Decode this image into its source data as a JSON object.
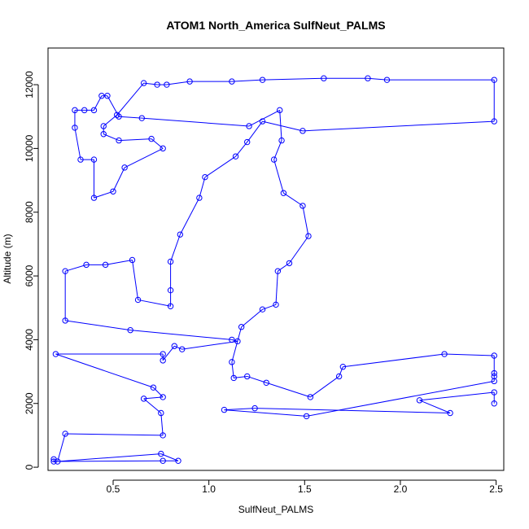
{
  "chart_data": {
    "type": "scatter",
    "title": "ATOM1 North_America SulfNeut_PALMS",
    "xlabel": "SulfNeut_PALMS",
    "ylabel": "Altitude (m)",
    "xlim": [
      0.16,
      2.54
    ],
    "ylim": [
      -100,
      13150
    ],
    "xticks": [
      "0.5",
      "1.0",
      "1.5",
      "2.0",
      "2.5"
    ],
    "xtick_values": [
      0.5,
      1.0,
      1.5,
      2.0,
      2.5
    ],
    "yticks": [
      "0",
      "2000",
      "4000",
      "6000",
      "8000",
      "10000",
      "12000"
    ],
    "ytick_values": [
      0,
      2000,
      4000,
      6000,
      8000,
      10000,
      12000
    ],
    "grid": false,
    "colors": {
      "series": "#0000ff",
      "axis": "#000000"
    },
    "series": [
      {
        "connected": true,
        "marker": "open-circle",
        "points": [
          [
            0.19,
            250
          ],
          [
            0.19,
            180
          ],
          [
            0.76,
            200
          ],
          [
            0.84,
            200
          ],
          [
            0.75,
            420
          ],
          [
            0.21,
            180
          ],
          [
            0.25,
            1050
          ],
          [
            0.76,
            1000
          ],
          [
            0.75,
            1700
          ],
          [
            0.66,
            2150
          ],
          [
            0.76,
            2200
          ],
          [
            0.71,
            2500
          ],
          [
            0.2,
            3550
          ],
          [
            0.76,
            3550
          ],
          [
            0.76,
            3350
          ],
          [
            0.82,
            3800
          ],
          [
            0.86,
            3700
          ],
          [
            1.15,
            3950
          ],
          [
            1.12,
            4000
          ],
          [
            0.59,
            4300
          ],
          [
            0.25,
            4600
          ],
          [
            0.25,
            6150
          ],
          [
            0.36,
            6350
          ],
          [
            0.46,
            6350
          ],
          [
            0.6,
            6500
          ],
          [
            0.63,
            5250
          ],
          [
            0.8,
            5050
          ],
          [
            0.8,
            5550
          ],
          [
            0.8,
            6450
          ],
          [
            0.85,
            7300
          ],
          [
            0.95,
            8450
          ],
          [
            0.98,
            9100
          ],
          [
            1.14,
            9750
          ],
          [
            1.2,
            10200
          ],
          [
            1.28,
            10850
          ],
          [
            1.49,
            10550
          ],
          [
            2.49,
            10850
          ],
          [
            2.49,
            12150
          ],
          [
            1.93,
            12150
          ],
          [
            1.83,
            12200
          ],
          [
            1.6,
            12200
          ],
          [
            1.28,
            12150
          ],
          [
            1.12,
            12100
          ],
          [
            0.9,
            12100
          ],
          [
            0.78,
            12000
          ],
          [
            0.73,
            12000
          ],
          [
            0.66,
            12050
          ],
          [
            0.52,
            11050
          ],
          [
            0.45,
            10700
          ],
          [
            0.45,
            10450
          ],
          [
            0.53,
            10250
          ],
          [
            0.7,
            10300
          ],
          [
            0.76,
            10000
          ],
          [
            0.56,
            9400
          ],
          [
            0.5,
            8650
          ],
          [
            0.4,
            8450
          ],
          [
            0.4,
            9650
          ],
          [
            0.33,
            9650
          ],
          [
            0.3,
            10650
          ],
          [
            0.3,
            11200
          ],
          [
            0.35,
            11200
          ],
          [
            0.4,
            11200
          ],
          [
            0.44,
            11650
          ],
          [
            0.47,
            11650
          ],
          [
            0.53,
            11000
          ],
          [
            0.65,
            10950
          ],
          [
            1.21,
            10700
          ],
          [
            1.37,
            11200
          ],
          [
            1.38,
            10250
          ],
          [
            1.34,
            9650
          ],
          [
            1.39,
            8600
          ],
          [
            1.49,
            8200
          ],
          [
            1.52,
            7250
          ],
          [
            1.42,
            6400
          ],
          [
            1.36,
            6150
          ],
          [
            1.35,
            5100
          ],
          [
            1.28,
            4950
          ],
          [
            1.17,
            4400
          ],
          [
            1.12,
            3300
          ],
          [
            1.13,
            2800
          ],
          [
            1.2,
            2850
          ],
          [
            1.3,
            2650
          ],
          [
            1.53,
            2200
          ],
          [
            1.68,
            2850
          ],
          [
            1.7,
            3150
          ],
          [
            2.23,
            3550
          ],
          [
            2.49,
            3500
          ],
          [
            2.49,
            2950
          ],
          [
            2.49,
            2850
          ],
          [
            2.49,
            2700
          ],
          [
            1.51,
            1600
          ],
          [
            1.08,
            1800
          ],
          [
            1.24,
            1850
          ],
          [
            2.26,
            1700
          ],
          [
            2.1,
            2100
          ],
          [
            2.49,
            2350
          ],
          [
            2.49,
            2000
          ]
        ]
      }
    ]
  }
}
